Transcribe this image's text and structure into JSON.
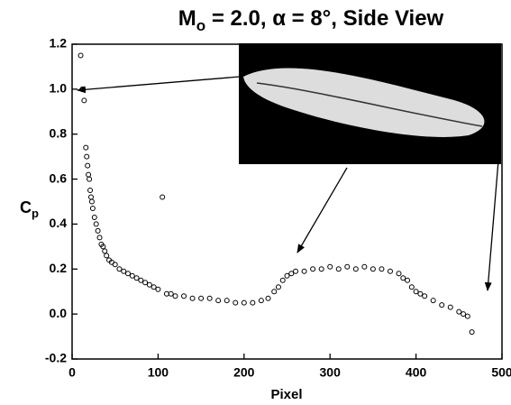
{
  "chart_data": {
    "type": "scatter",
    "title": [
      "M",
      "o",
      " = 2.0, α = 8°, Side View"
    ],
    "x_label": "Pixel",
    "y_label": [
      "C",
      "p"
    ],
    "xlim": [
      0,
      500
    ],
    "xticks": [
      0,
      100,
      200,
      300,
      400,
      500
    ],
    "ylim": [
      -0.2,
      1.2
    ],
    "yticks": [
      -0.2,
      {
        "value": 0,
        "label": "0.0"
      },
      0.2,
      0.4,
      0.6,
      0.8,
      {
        "value": 1,
        "label": "1.0"
      },
      1.2
    ],
    "marker_color": "#000000",
    "x": [
      10,
      12,
      14,
      16,
      17,
      18,
      19,
      20,
      21,
      22,
      23,
      24,
      26,
      28,
      30,
      32,
      34,
      36,
      38,
      40,
      43,
      46,
      50,
      55,
      60,
      65,
      70,
      75,
      80,
      85,
      90,
      95,
      100,
      105,
      110,
      115,
      120,
      130,
      140,
      150,
      160,
      170,
      180,
      190,
      200,
      210,
      220,
      228,
      235,
      240,
      245,
      250,
      255,
      260,
      270,
      280,
      290,
      300,
      310,
      320,
      330,
      340,
      350,
      360,
      370,
      380,
      385,
      390,
      395,
      400,
      405,
      410,
      420,
      430,
      440,
      450,
      455,
      460,
      465
    ],
    "values": [
      1.15,
      1.0,
      0.95,
      0.74,
      0.7,
      0.66,
      0.62,
      0.6,
      0.55,
      0.52,
      0.5,
      0.47,
      0.43,
      0.4,
      0.37,
      0.34,
      0.31,
      0.3,
      0.28,
      0.26,
      0.24,
      0.23,
      0.22,
      0.2,
      0.19,
      0.18,
      0.17,
      0.16,
      0.15,
      0.14,
      0.13,
      0.12,
      0.11,
      0.52,
      0.09,
      0.09,
      0.08,
      0.08,
      0.07,
      0.07,
      0.07,
      0.06,
      0.06,
      0.05,
      0.05,
      0.05,
      0.06,
      0.07,
      0.1,
      0.12,
      0.15,
      0.17,
      0.18,
      0.19,
      0.19,
      0.2,
      0.2,
      0.21,
      0.2,
      0.21,
      0.2,
      0.21,
      0.2,
      0.2,
      0.19,
      0.18,
      0.16,
      0.15,
      0.12,
      0.1,
      0.09,
      0.08,
      0.06,
      0.04,
      0.03,
      0.01,
      0.0,
      -0.01,
      -0.08
    ]
  }
}
